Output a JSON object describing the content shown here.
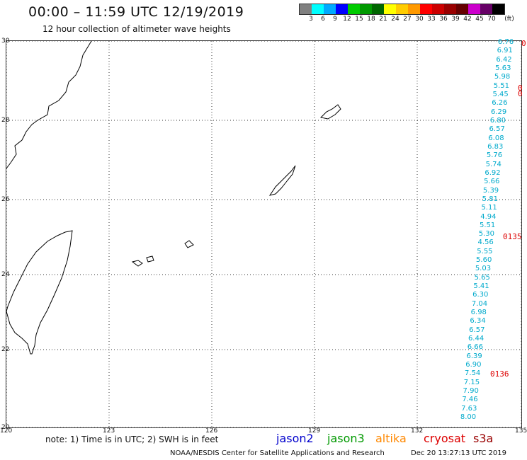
{
  "header": {
    "title": "00:00 – 11:59 UTC 12/19/2019",
    "subtitle": "12 hour collection of altimeter wave heights"
  },
  "legend": {
    "unit": "(ft)",
    "colors": [
      "#808080",
      "#00ffff",
      "#00aaff",
      "#0000ff",
      "#00cc00",
      "#009900",
      "#006600",
      "#ffff00",
      "#ffcc00",
      "#ff9900",
      "#ff0000",
      "#cc0000",
      "#990000",
      "#660000",
      "#cc00cc",
      "#660066",
      "#000000"
    ],
    "labels": [
      "3",
      "6",
      "9",
      "12",
      "15",
      "18",
      "21",
      "24",
      "27",
      "30",
      "33",
      "36",
      "39",
      "42",
      "45",
      "70"
    ]
  },
  "map": {
    "lat_labels": [
      "30",
      "28",
      "26",
      "24",
      "22",
      "20"
    ],
    "lon_labels": [
      "120",
      "123",
      "126",
      "129",
      "132",
      "135"
    ],
    "observations": [
      "6.76",
      "6.91",
      "6.42",
      "5.63",
      "5.98",
      "5.51",
      "5.45",
      "6.26",
      "6.29",
      "6.80",
      "6.57",
      "6.08",
      "6.83",
      "5.76",
      "5.74",
      "6.92",
      "5.66",
      "5.39",
      "5.81",
      "5.11",
      "4.94",
      "5.51",
      "5.30",
      "4.56",
      "5.55",
      "5.60",
      "5.03",
      "5.65",
      "5.41",
      "6.30",
      "7.04",
      "6.98",
      "6.34",
      "6.57",
      "6.44",
      "6.66",
      "6.39",
      "6.90",
      "7.54",
      "7.15",
      "7.90",
      "7.46",
      "7.63",
      "8.00"
    ],
    "pass_labels": [
      "0",
      "0",
      "0",
      "0135",
      "0136"
    ]
  },
  "footer": {
    "note": "note: 1) Time is in UTC; 2) SWH is in feet",
    "satellites": [
      {
        "name": "jason2",
        "color": "#0000cc"
      },
      {
        "name": "jason3",
        "color": "#009900"
      },
      {
        "name": "altika",
        "color": "#ff8800"
      },
      {
        "name": "cryosat",
        "color": "#dd0000"
      },
      {
        "name": "s3a",
        "color": "#990000"
      }
    ],
    "credit": "NOAA/NESDIS Center for Satellite Applications and Research",
    "timestamp": "Dec 20 13:27:13 UTC 2019"
  }
}
